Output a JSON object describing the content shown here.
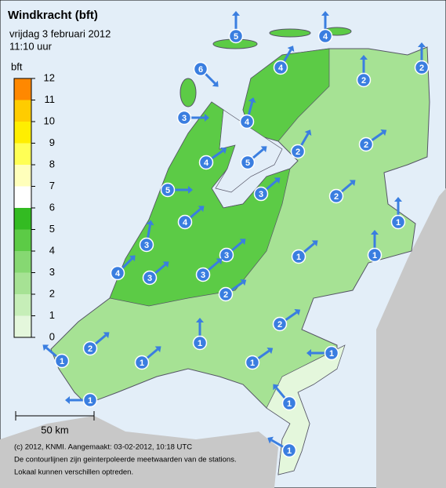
{
  "header": {
    "title": "Windkracht (bft)",
    "date": "vrijdag 3 februari 2012",
    "time": "11:10 uur"
  },
  "legend": {
    "title": "bft",
    "ticks": [
      0,
      1,
      2,
      3,
      4,
      5,
      6,
      7,
      8,
      9,
      10,
      11,
      12
    ],
    "colors": [
      "#e4f7dc",
      "#c6eeb8",
      "#a6e294",
      "#86d872",
      "#5ccb46",
      "#33bb22",
      "#ffffff",
      "#ffffbb",
      "#ffff55",
      "#ffee00",
      "#ffcc00",
      "#ff8800"
    ]
  },
  "stations": [
    5,
    4,
    6,
    4,
    2,
    2,
    3,
    4,
    2,
    2,
    4,
    5,
    5,
    3,
    2,
    4,
    1,
    3,
    3,
    1,
    1,
    4,
    3,
    3,
    2,
    2,
    2,
    1,
    1,
    1,
    1,
    1,
    1,
    1,
    1
  ],
  "scale": {
    "label": "50 km"
  },
  "footer": {
    "lines": [
      "(c) 2012, KNMI. Aangemaakt: 03-02-2012, 10:18 UTC",
      "De contourlijnen zijn geinterpoleerde meetwaarden van de stations.",
      "Lokaal kunnen verschillen optreden."
    ]
  }
}
